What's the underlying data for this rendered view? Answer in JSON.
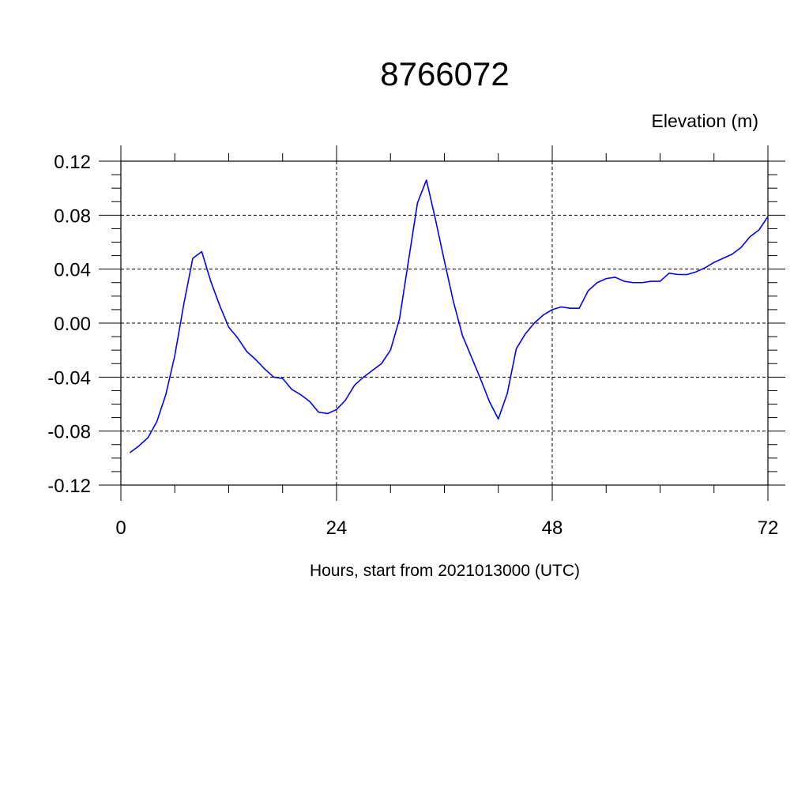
{
  "chart_data": {
    "type": "line",
    "title": "8766072",
    "ylabel": "Elevation (m)",
    "xlabel": "Hours, start from 2021013000 (UTC)",
    "xlim": [
      0,
      72
    ],
    "ylim": [
      -0.12,
      0.12
    ],
    "xticks": [
      0,
      24,
      48,
      72
    ],
    "xtick_labels": [
      "0",
      "24",
      "48",
      "72"
    ],
    "yticks": [
      -0.12,
      -0.08,
      -0.04,
      0.0,
      0.04,
      0.08,
      0.12
    ],
    "ytick_labels": [
      "-0.12",
      "-0.08",
      "-0.04",
      "0.00",
      "0.04",
      "0.08",
      "0.12"
    ],
    "grid": true,
    "series": [
      {
        "color": "#0000ff",
        "x": [
          1,
          2,
          3,
          4,
          5,
          6,
          7,
          8,
          9,
          10,
          11,
          12,
          13,
          14,
          15,
          16,
          17,
          18,
          19,
          20,
          21,
          22,
          23,
          24,
          25,
          26,
          27,
          28,
          29,
          30,
          31,
          32,
          33,
          34,
          35,
          36,
          37,
          38,
          39,
          40,
          41,
          42,
          43,
          44,
          45,
          46,
          47,
          48,
          49,
          50,
          51,
          52,
          53,
          54,
          55,
          56,
          57,
          58,
          59,
          60,
          61,
          62,
          63,
          64,
          65,
          66,
          67,
          68,
          69,
          70,
          71,
          72
        ],
        "y": [
          -0.096,
          -0.091,
          -0.085,
          -0.073,
          -0.053,
          -0.024,
          0.014,
          0.048,
          0.053,
          0.031,
          0.013,
          -0.003,
          -0.011,
          -0.021,
          -0.027,
          -0.034,
          -0.04,
          -0.041,
          -0.049,
          -0.053,
          -0.058,
          -0.066,
          -0.067,
          -0.064,
          -0.057,
          -0.046,
          -0.04,
          -0.035,
          -0.03,
          -0.02,
          0.003,
          0.046,
          0.089,
          0.106,
          0.077,
          0.046,
          0.016,
          -0.009,
          -0.025,
          -0.041,
          -0.058,
          -0.071,
          -0.052,
          -0.019,
          -0.008,
          0.0,
          0.006,
          0.01,
          0.012,
          0.011,
          0.011,
          0.024,
          0.03,
          0.033,
          0.034,
          0.031,
          0.03,
          0.03,
          0.031,
          0.031,
          0.037,
          0.036,
          0.036,
          0.038,
          0.041,
          0.045,
          0.048,
          0.051,
          0.056,
          0.064,
          0.069,
          0.079
        ]
      }
    ]
  }
}
